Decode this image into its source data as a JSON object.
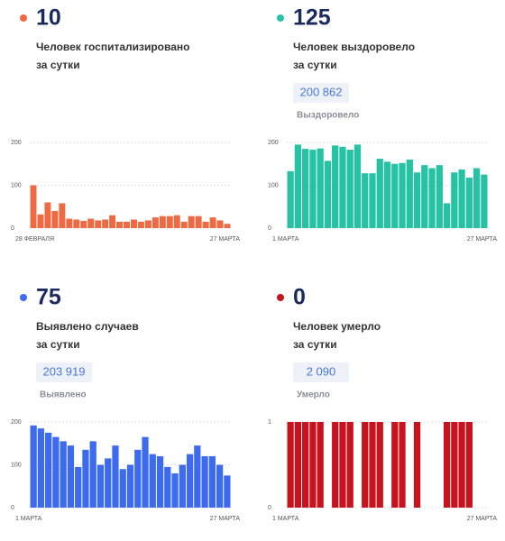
{
  "stats": [
    {
      "value": 10,
      "line1": "Человек госпитализировано",
      "line2": "за сутки"
    },
    {
      "value": 125,
      "line1": "Человек выздоровело",
      "line2": "за сутки",
      "total": "200 862",
      "total_label": "Выздоровело"
    },
    {
      "value": 75,
      "line1": "Выявлено случаев",
      "line2": "за сутки",
      "total": "203 919",
      "total_label": "Выявлено"
    },
    {
      "value": 0,
      "line1": "Человек умерло",
      "line2": "за сутки",
      "total": "2 090",
      "total_label": "Умерло"
    }
  ],
  "chart_data": [
    {
      "type": "bar",
      "color": "#ee6a43",
      "ylim": [
        0,
        200
      ],
      "yticks": [
        0,
        100,
        200
      ],
      "grid": true,
      "categories": [
        "28 ФЕВРАЛЯ",
        null,
        null,
        null,
        null,
        null,
        null,
        null,
        null,
        null,
        null,
        null,
        null,
        null,
        null,
        null,
        null,
        null,
        null,
        null,
        null,
        null,
        null,
        null,
        null,
        null,
        null,
        "27 МАРТА"
      ],
      "values": [
        100,
        32,
        60,
        40,
        58,
        22,
        20,
        17,
        22,
        18,
        20,
        30,
        15,
        15,
        20,
        15,
        18,
        25,
        28,
        28,
        30,
        15,
        28,
        28,
        15,
        25,
        18,
        10
      ]
    },
    {
      "type": "bar",
      "color": "#26c2a4",
      "ylim": [
        0,
        200
      ],
      "yticks": [
        0,
        100,
        200
      ],
      "grid": true,
      "categories": [
        "1 МАРТА",
        null,
        null,
        null,
        null,
        null,
        null,
        null,
        null,
        null,
        null,
        null,
        null,
        null,
        null,
        null,
        null,
        null,
        null,
        null,
        null,
        null,
        null,
        null,
        null,
        null,
        "27 МАРТА"
      ],
      "values": [
        133,
        195,
        185,
        183,
        186,
        157,
        193,
        190,
        183,
        195,
        128,
        128,
        162,
        155,
        150,
        152,
        160,
        130,
        147,
        140,
        147,
        58,
        130,
        137,
        118,
        140,
        125
      ]
    },
    {
      "type": "bar",
      "color": "#3d6bf0",
      "ylim": [
        0,
        200
      ],
      "yticks": [
        0,
        100,
        200
      ],
      "grid": true,
      "categories": [
        "1 МАРТА",
        null,
        null,
        null,
        null,
        null,
        null,
        null,
        null,
        null,
        null,
        null,
        null,
        null,
        null,
        null,
        null,
        null,
        null,
        null,
        null,
        null,
        null,
        null,
        null,
        null,
        "27 МАРТА"
      ],
      "values": [
        192,
        185,
        175,
        165,
        155,
        145,
        95,
        135,
        155,
        100,
        115,
        145,
        90,
        100,
        135,
        165,
        125,
        120,
        95,
        80,
        100,
        125,
        145,
        120,
        120,
        100,
        75
      ]
    },
    {
      "type": "bar",
      "color": "#c8121e",
      "ylim": [
        0,
        1
      ],
      "yticks": [
        0,
        1
      ],
      "grid": true,
      "categories": [
        "1 МАРТА",
        null,
        null,
        null,
        null,
        null,
        null,
        null,
        null,
        null,
        null,
        null,
        null,
        null,
        null,
        null,
        null,
        null,
        null,
        null,
        null,
        null,
        null,
        null,
        null,
        null,
        "27 МАРТА"
      ],
      "values": [
        1,
        1,
        1,
        1,
        1,
        0,
        1,
        1,
        1,
        0,
        1,
        1,
        1,
        0,
        1,
        1,
        0,
        1,
        0,
        0,
        0,
        1,
        1,
        1,
        1,
        0,
        0
      ]
    }
  ]
}
